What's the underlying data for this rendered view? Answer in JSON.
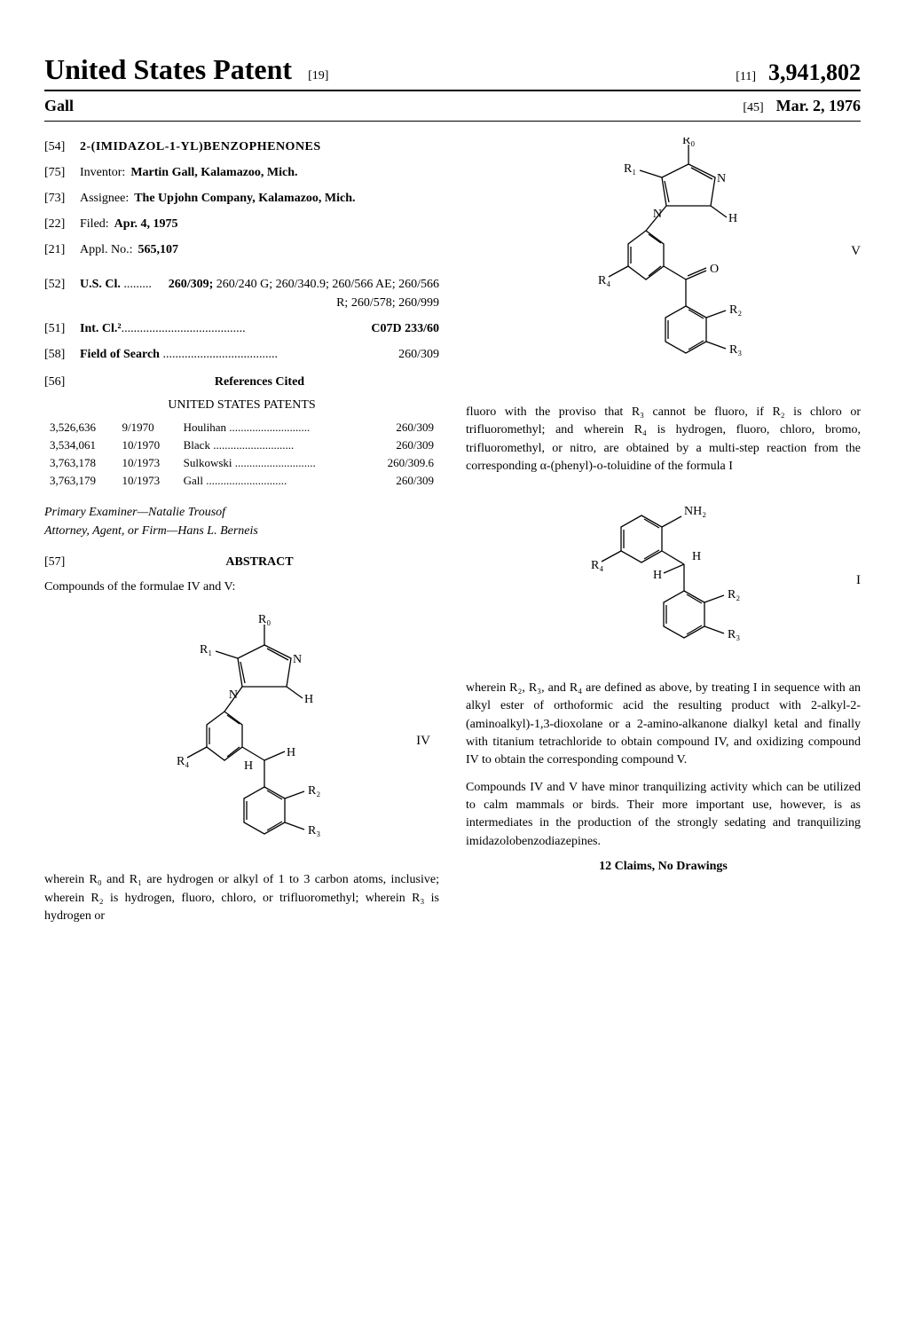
{
  "header": {
    "title": "United States Patent",
    "title_bracket": "[19]",
    "number_bracket": "[11]",
    "patent_number": "3,941,802",
    "date_bracket": "[45]",
    "issue_date": "Mar. 2, 1976",
    "inventor_surname": "Gall"
  },
  "meta": {
    "title_bracket": "[54]",
    "title": "2-(IMIDAZOL-1-YL)BENZOPHENONES",
    "inventor_bracket": "[75]",
    "inventor_label": "Inventor:",
    "inventor_value": "Martin Gall, Kalamazoo, Mich.",
    "assignee_bracket": "[73]",
    "assignee_label": "Assignee:",
    "assignee_value": "The Upjohn Company, Kalamazoo, Mich.",
    "filed_bracket": "[22]",
    "filed_label": "Filed:",
    "filed_value": "Apr. 4, 1975",
    "appl_bracket": "[21]",
    "appl_label": "Appl. No.:",
    "appl_value": "565,107",
    "uscl_bracket": "[52]",
    "uscl_label": "U.S. Cl.",
    "uscl_value": "260/309; 260/240 G; 260/340.9; 260/566 AE; 260/566 R; 260/578; 260/999",
    "intcl_bracket": "[51]",
    "intcl_label": "Int. Cl.²",
    "intcl_value": "C07D 233/60",
    "search_bracket": "[58]",
    "search_label": "Field of Search",
    "search_value": "260/309",
    "refs_bracket": "[56]",
    "refs_heading": "References Cited",
    "refs_sub": "UNITED STATES PATENTS"
  },
  "references": [
    {
      "num": "3,526,636",
      "date": "9/1970",
      "name": "Houlihan",
      "class": "260/309"
    },
    {
      "num": "3,534,061",
      "date": "10/1970",
      "name": "Black",
      "class": "260/309"
    },
    {
      "num": "3,763,178",
      "date": "10/1973",
      "name": "Sulkowski",
      "class": "260/309.6"
    },
    {
      "num": "3,763,179",
      "date": "10/1973",
      "name": "Gall",
      "class": "260/309"
    }
  ],
  "examiner": {
    "primary_label": "Primary Examiner—",
    "primary_value": "Natalie Trousof",
    "attorney_label": "Attorney, Agent, or Firm—",
    "attorney_value": "Hans L. Berneis"
  },
  "abstract": {
    "bracket": "[57]",
    "heading": "ABSTRACT",
    "intro": "Compounds of the formulae IV and V:",
    "formula_iv_label": "IV",
    "formula_v_label": "V",
    "formula_i_label": "I",
    "para1": "wherein R₀ and R₁ are hydrogen or alkyl of 1 to 3 carbon atoms, inclusive; wherein R₂ is hydrogen, fluoro, chloro, or trifluoromethyl; wherein R₃ is hydrogen or",
    "para2": "fluoro with the proviso that R₃ cannot be fluoro, if R₂ is chloro or trifluoromethyl; and wherein R₄ is hydrogen, fluoro, chloro, bromo, trifluoromethyl, or nitro, are obtained by a multi-step reaction from the corresponding α-(phenyl)-o-toluidine of the formula I",
    "para3": "wherein R₂, R₃, and R₄ are defined as above, by treating I in sequence with an alkyl ester of orthoformic acid the resulting product with 2-alkyl-2-(aminoalkyl)-1,3-dioxolane or a 2-amino-alkanone dialkyl ketal and finally with titanium tetrachloride to obtain compound IV, and oxidizing compound IV to obtain the corresponding compound V.",
    "para4": "Compounds IV and V have minor tranquilizing activity which can be utilized to calm mammals or birds. Their more important use, however, is as intermediates in the production of the strongly sedating and tranquilizing imidazolobenzodiazepines.",
    "claims": "12 Claims, No Drawings"
  },
  "structures": {
    "stroke": "#000000",
    "stroke_width": 1.2,
    "labels": {
      "R0": "R₀",
      "R1": "R₁",
      "R2": "R₂",
      "R3": "R₃",
      "R4": "R₄",
      "N": "N",
      "H": "H",
      "O": "O",
      "NH2": "NH₂"
    }
  }
}
